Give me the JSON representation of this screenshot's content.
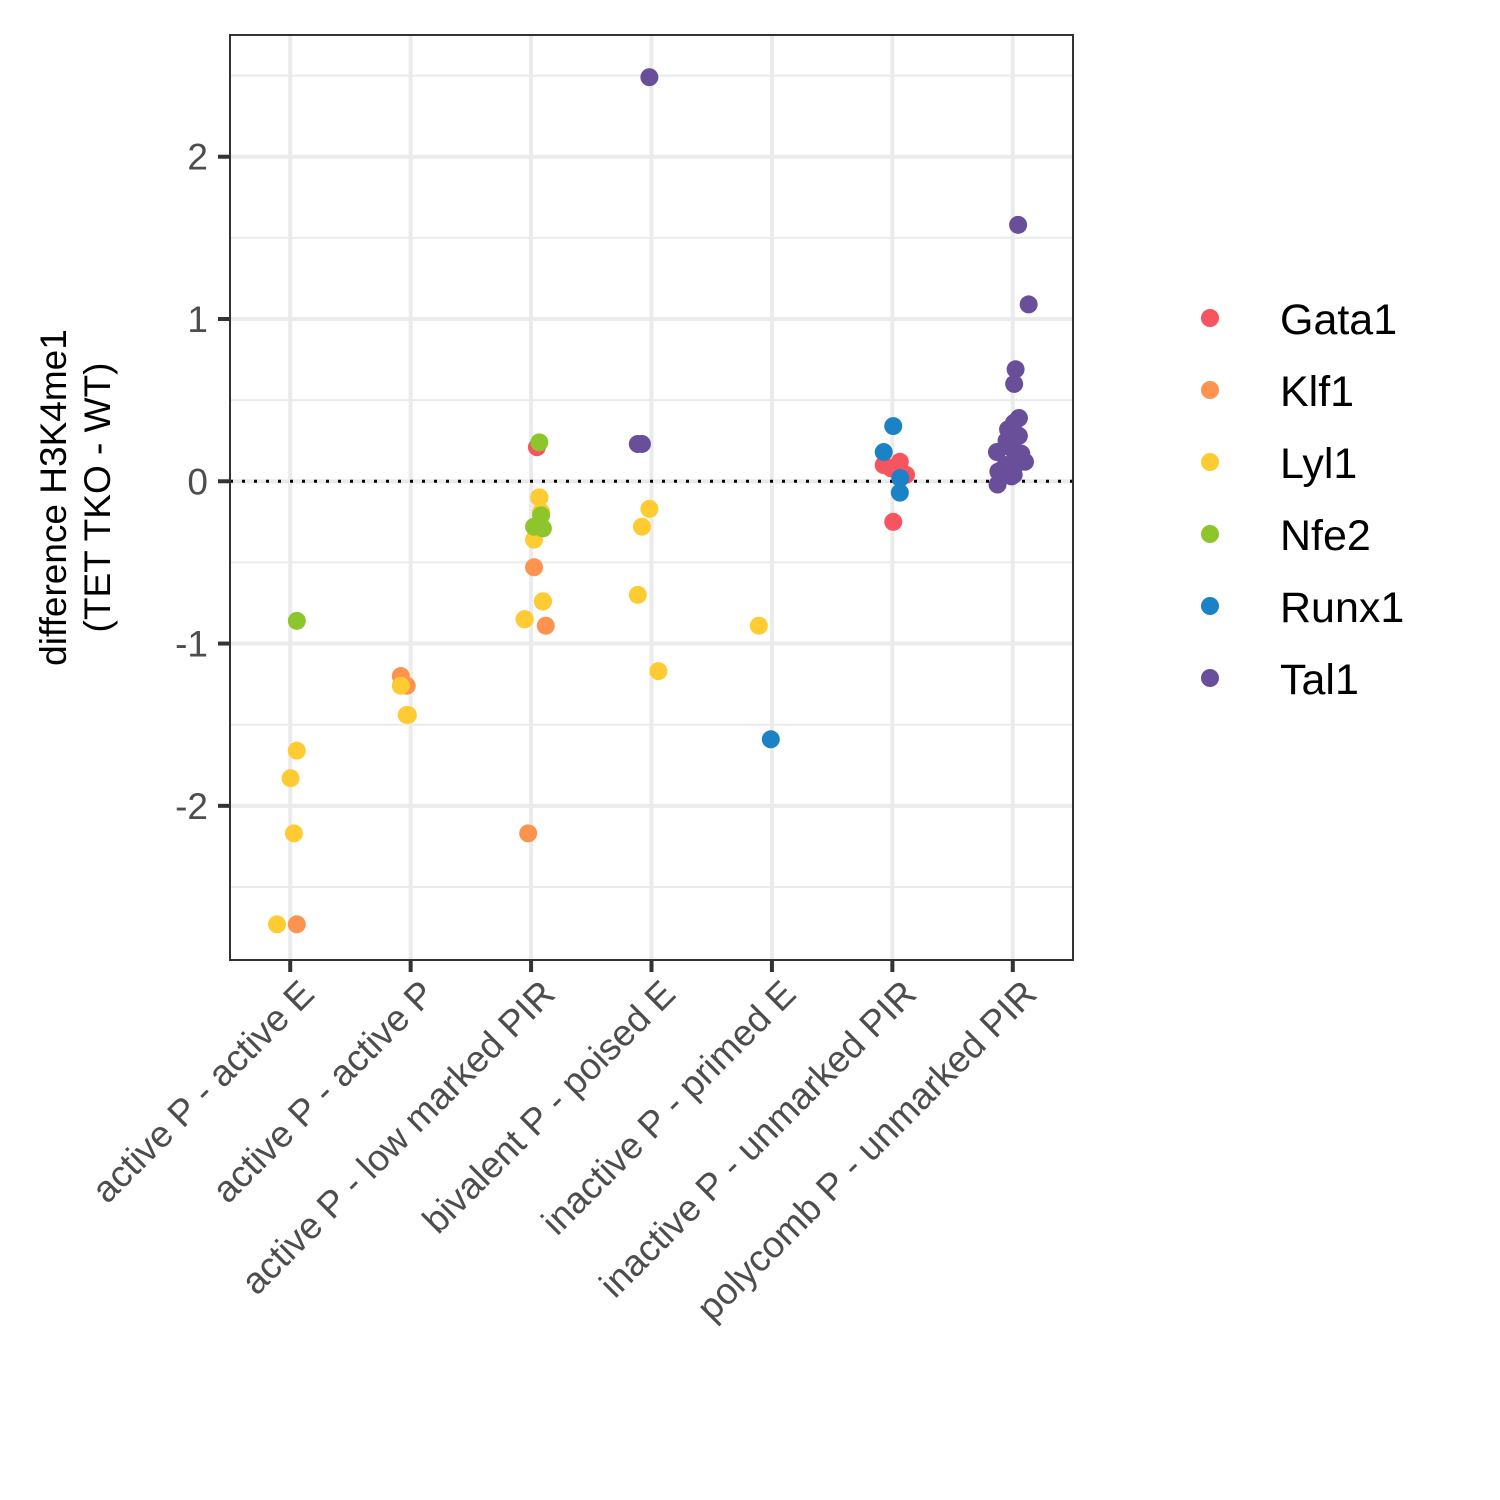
{
  "chart_data": {
    "type": "scatter",
    "title": "",
    "xlabel": "",
    "ylabel": [
      "difference H3K4me1",
      "(TET TKO - WT)"
    ],
    "categories": [
      "active P - active E",
      "active P - active P",
      "active P - low marked PIR",
      "bivalent P - poised E",
      "inactive P - primed E",
      "inactive P - unmarked PIR",
      "polycomb P - unmarked PIR"
    ],
    "yticks": [
      -2,
      -1,
      0,
      1,
      2
    ],
    "yticklabels": [
      "-2",
      "-1",
      "0",
      "1",
      "2"
    ],
    "ylim": [
      -2.95,
      2.75
    ],
    "grid": true,
    "reference_line": {
      "y": 0,
      "style": "dotted"
    },
    "legend_position": "right",
    "series": [
      {
        "name": "Gata1",
        "color": "#F8545F",
        "points": [
          {
            "x": "active P - low marked PIR",
            "y": 0.21
          },
          {
            "x": "inactive P - unmarked PIR",
            "y": -0.25
          },
          {
            "x": "inactive P - unmarked PIR",
            "y": 0.1
          },
          {
            "x": "inactive P - unmarked PIR",
            "y": 0.12
          },
          {
            "x": "inactive P - unmarked PIR",
            "y": 0.06
          },
          {
            "x": "inactive P - unmarked PIR",
            "y": 0.04
          },
          {
            "x": "inactive P - unmarked PIR",
            "y": 0.08
          }
        ]
      },
      {
        "name": "Klf1",
        "color": "#FC9450",
        "points": [
          {
            "x": "active P - active E",
            "y": -2.73
          },
          {
            "x": "active P - active P",
            "y": -1.2
          },
          {
            "x": "active P - active P",
            "y": -1.26
          },
          {
            "x": "active P - low marked PIR",
            "y": -0.1
          },
          {
            "x": "active P - low marked PIR",
            "y": -0.19
          },
          {
            "x": "active P - low marked PIR",
            "y": -0.53
          },
          {
            "x": "active P - low marked PIR",
            "y": -0.74
          },
          {
            "x": "active P - low marked PIR",
            "y": -0.85
          },
          {
            "x": "active P - low marked PIR",
            "y": -0.89
          },
          {
            "x": "active P - low marked PIR",
            "y": -2.17
          }
        ]
      },
      {
        "name": "Lyl1",
        "color": "#FFCB32",
        "points": [
          {
            "x": "active P - active E",
            "y": -1.66
          },
          {
            "x": "active P - active E",
            "y": -1.83
          },
          {
            "x": "active P - active E",
            "y": -2.17
          },
          {
            "x": "active P - active E",
            "y": -2.73
          },
          {
            "x": "active P - active P",
            "y": -1.26
          },
          {
            "x": "active P - active P",
            "y": -1.44
          },
          {
            "x": "active P - active P",
            "y": -1.44
          },
          {
            "x": "active P - low marked PIR",
            "y": -0.1
          },
          {
            "x": "active P - low marked PIR",
            "y": -0.19
          },
          {
            "x": "active P - low marked PIR",
            "y": -0.36
          },
          {
            "x": "active P - low marked PIR",
            "y": -0.74
          },
          {
            "x": "active P - low marked PIR",
            "y": -0.85
          },
          {
            "x": "bivalent P - poised E",
            "y": -0.17
          },
          {
            "x": "bivalent P - poised E",
            "y": -0.28
          },
          {
            "x": "bivalent P - poised E",
            "y": -0.7
          },
          {
            "x": "bivalent P - poised E",
            "y": -1.17
          },
          {
            "x": "inactive P - primed E",
            "y": -0.89
          }
        ]
      },
      {
        "name": "Nfe2",
        "color": "#8CC62C",
        "points": [
          {
            "x": "active P - active E",
            "y": -0.86
          },
          {
            "x": "active P - low marked PIR",
            "y": 0.24
          },
          {
            "x": "active P - low marked PIR",
            "y": -0.21
          },
          {
            "x": "active P - low marked PIR",
            "y": -0.28
          },
          {
            "x": "active P - low marked PIR",
            "y": -0.29
          }
        ]
      },
      {
        "name": "Runx1",
        "color": "#1C82C6",
        "points": [
          {
            "x": "inactive P - primed E",
            "y": -1.59
          },
          {
            "x": "inactive P - unmarked PIR",
            "y": 0.34
          },
          {
            "x": "inactive P - unmarked PIR",
            "y": 0.18
          },
          {
            "x": "inactive P - unmarked PIR",
            "y": -0.07
          },
          {
            "x": "inactive P - unmarked PIR",
            "y": 0.02
          }
        ]
      },
      {
        "name": "Tal1",
        "color": "#694E9A",
        "points": [
          {
            "x": "bivalent P - poised E",
            "y": 2.49
          },
          {
            "x": "bivalent P - poised E",
            "y": 0.23
          },
          {
            "x": "bivalent P - poised E",
            "y": 0.23
          },
          {
            "x": "polycomb P - unmarked PIR",
            "y": 1.58
          },
          {
            "x": "polycomb P - unmarked PIR",
            "y": 1.09
          },
          {
            "x": "polycomb P - unmarked PIR",
            "y": 0.69
          },
          {
            "x": "polycomb P - unmarked PIR",
            "y": 0.6
          },
          {
            "x": "polycomb P - unmarked PIR",
            "y": 0.39
          },
          {
            "x": "polycomb P - unmarked PIR",
            "y": 0.36
          },
          {
            "x": "polycomb P - unmarked PIR",
            "y": 0.32
          },
          {
            "x": "polycomb P - unmarked PIR",
            "y": 0.28
          },
          {
            "x": "polycomb P - unmarked PIR",
            "y": 0.25
          },
          {
            "x": "polycomb P - unmarked PIR",
            "y": 0.23
          },
          {
            "x": "polycomb P - unmarked PIR",
            "y": 0.2
          },
          {
            "x": "polycomb P - unmarked PIR",
            "y": 0.18
          },
          {
            "x": "polycomb P - unmarked PIR",
            "y": 0.17
          },
          {
            "x": "polycomb P - unmarked PIR",
            "y": 0.15
          },
          {
            "x": "polycomb P - unmarked PIR",
            "y": 0.12
          },
          {
            "x": "polycomb P - unmarked PIR",
            "y": 0.1
          },
          {
            "x": "polycomb P - unmarked PIR",
            "y": 0.09
          },
          {
            "x": "polycomb P - unmarked PIR",
            "y": 0.07
          },
          {
            "x": "polycomb P - unmarked PIR",
            "y": 0.06
          },
          {
            "x": "polycomb P - unmarked PIR",
            "y": 0.04
          },
          {
            "x": "polycomb P - unmarked PIR",
            "y": 0.03
          },
          {
            "x": "polycomb P - unmarked PIR",
            "y": -0.02
          }
        ]
      }
    ]
  }
}
